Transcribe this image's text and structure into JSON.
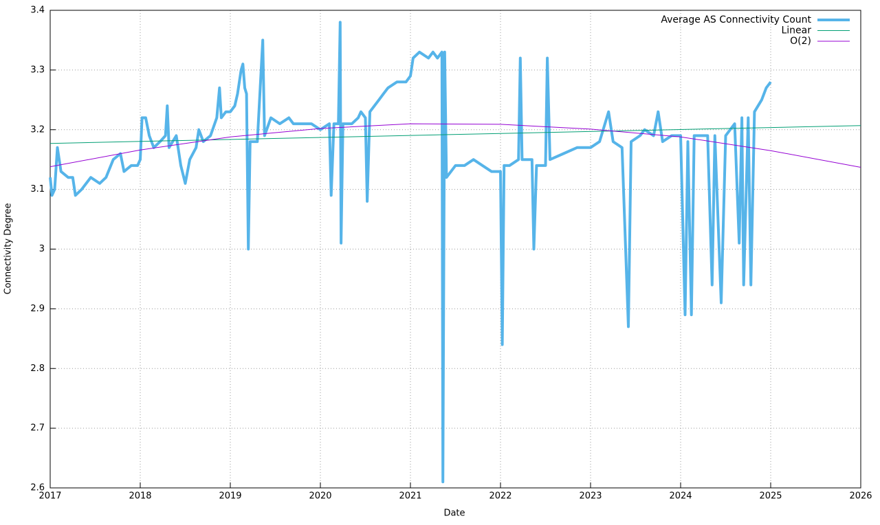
{
  "chart_data": {
    "type": "line",
    "xlabel": "Date",
    "ylabel": "Connectivity Degree",
    "xlim": [
      2017,
      2026
    ],
    "xticks": [
      2017,
      2018,
      2019,
      2020,
      2021,
      2022,
      2023,
      2024,
      2025,
      2026
    ],
    "ylim": [
      2.6,
      3.4
    ],
    "yticks": [
      2.6,
      2.7,
      2.8,
      2.9,
      3,
      3.1,
      3.2,
      3.3,
      3.4
    ],
    "grid": true,
    "legend": "top-right",
    "series": [
      {
        "name": "Average AS Connectivity Count",
        "color": "#56b4e9",
        "width": 4,
        "x": [
          2017.0,
          2017.02,
          2017.05,
          2017.08,
          2017.12,
          2017.2,
          2017.25,
          2017.28,
          2017.35,
          2017.45,
          2017.55,
          2017.62,
          2017.7,
          2017.78,
          2017.82,
          2017.9,
          2017.97,
          2018.0,
          2018.02,
          2018.06,
          2018.1,
          2018.15,
          2018.22,
          2018.28,
          2018.3,
          2018.32,
          2018.4,
          2018.45,
          2018.5,
          2018.55,
          2018.62,
          2018.65,
          2018.7,
          2018.78,
          2018.85,
          2018.88,
          2018.9,
          2018.95,
          2019.0,
          2019.05,
          2019.08,
          2019.12,
          2019.14,
          2019.16,
          2019.18,
          2019.2,
          2019.22,
          2019.3,
          2019.36,
          2019.38,
          2019.45,
          2019.55,
          2019.65,
          2019.7,
          2019.8,
          2019.9,
          2020.0,
          2020.1,
          2020.12,
          2020.15,
          2020.2,
          2020.22,
          2020.23,
          2020.25,
          2020.35,
          2020.42,
          2020.45,
          2020.5,
          2020.52,
          2020.55,
          2020.65,
          2020.7,
          2020.75,
          2020.85,
          2020.95,
          2021.0,
          2021.03,
          2021.1,
          2021.2,
          2021.25,
          2021.3,
          2021.35,
          2021.36,
          2021.38,
          2021.4,
          2021.5,
          2021.6,
          2021.7,
          2021.8,
          2021.9,
          2022.0,
          2022.02,
          2022.04,
          2022.1,
          2022.2,
          2022.22,
          2022.24,
          2022.35,
          2022.37,
          2022.4,
          2022.5,
          2022.52,
          2022.55,
          2022.7,
          2022.85,
          2023.0,
          2023.1,
          2023.2,
          2023.25,
          2023.35,
          2023.42,
          2023.45,
          2023.55,
          2023.6,
          2023.7,
          2023.75,
          2023.8,
          2023.9,
          2024.0,
          2024.05,
          2024.08,
          2024.12,
          2024.15,
          2024.3,
          2024.35,
          2024.38,
          2024.45,
          2024.5,
          2024.6,
          2024.65,
          2024.68,
          2024.7,
          2024.75,
          2024.78,
          2024.82,
          2024.9,
          2024.95,
          2025.0
        ],
        "values": [
          3.12,
          3.09,
          3.1,
          3.17,
          3.13,
          3.12,
          3.12,
          3.09,
          3.1,
          3.12,
          3.11,
          3.12,
          3.15,
          3.16,
          3.13,
          3.14,
          3.14,
          3.15,
          3.22,
          3.22,
          3.19,
          3.17,
          3.18,
          3.19,
          3.24,
          3.17,
          3.19,
          3.14,
          3.11,
          3.15,
          3.17,
          3.2,
          3.18,
          3.19,
          3.22,
          3.27,
          3.22,
          3.23,
          3.23,
          3.24,
          3.26,
          3.3,
          3.31,
          3.27,
          3.26,
          3.0,
          3.18,
          3.18,
          3.35,
          3.19,
          3.22,
          3.21,
          3.22,
          3.21,
          3.21,
          3.21,
          3.2,
          3.21,
          3.09,
          3.21,
          3.21,
          3.38,
          3.01,
          3.21,
          3.21,
          3.22,
          3.23,
          3.22,
          3.08,
          3.23,
          3.25,
          3.26,
          3.27,
          3.28,
          3.28,
          3.29,
          3.32,
          3.33,
          3.32,
          3.33,
          3.32,
          3.33,
          2.61,
          3.33,
          3.12,
          3.14,
          3.14,
          3.15,
          3.14,
          3.13,
          3.13,
          2.84,
          3.14,
          3.14,
          3.15,
          3.32,
          3.15,
          3.15,
          3.0,
          3.14,
          3.14,
          3.32,
          3.15,
          3.16,
          3.17,
          3.17,
          3.18,
          3.23,
          3.18,
          3.17,
          2.87,
          3.18,
          3.19,
          3.2,
          3.19,
          3.23,
          3.18,
          3.19,
          3.19,
          2.89,
          3.18,
          2.89,
          3.19,
          3.19,
          2.94,
          3.19,
          2.91,
          3.19,
          3.21,
          3.01,
          3.22,
          2.94,
          3.22,
          2.94,
          3.23,
          3.25,
          3.27,
          3.28
        ]
      },
      {
        "name": "Linear",
        "color": "#009e73",
        "width": 1,
        "x": [
          2017,
          2026
        ],
        "values": [
          3.177,
          3.207
        ]
      },
      {
        "name": "O(2)",
        "color": "#9400d3",
        "width": 1,
        "x": [
          2017,
          2018,
          2019,
          2020,
          2021,
          2022,
          2023,
          2024,
          2025,
          2026
        ],
        "values": [
          3.138,
          3.166,
          3.188,
          3.202,
          3.21,
          3.209,
          3.201,
          3.188,
          3.165,
          3.137
        ]
      }
    ]
  }
}
